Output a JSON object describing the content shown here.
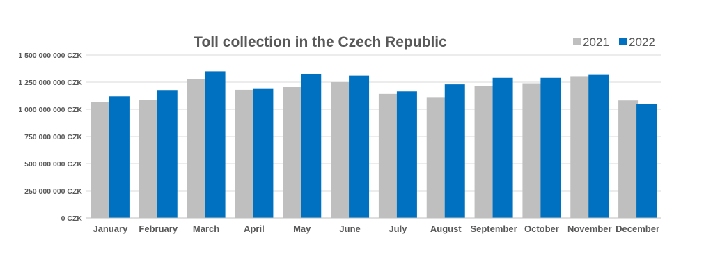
{
  "chart_data": {
    "type": "bar",
    "title": "Toll collection in the Czech Republic",
    "xlabel": "",
    "ylabel": "",
    "ylim": [
      0,
      1500000000
    ],
    "yticks": [
      0,
      250000000,
      500000000,
      750000000,
      1000000000,
      1250000000,
      1500000000
    ],
    "ytick_labels": [
      "0 CZK",
      "250 000 000 CZK",
      "500 000 000 CZK",
      "750 000 000 CZK",
      "1 000 000 000 CZK",
      "1 250 000 000 CZK",
      "1 500 000 000 CZK"
    ],
    "categories": [
      "January",
      "February",
      "March",
      "April",
      "May",
      "June",
      "July",
      "August",
      "September",
      "October",
      "November",
      "December"
    ],
    "series": [
      {
        "name": "2021",
        "color": "#bfbfbf",
        "values": [
          1065000000,
          1085000000,
          1280000000,
          1180000000,
          1205000000,
          1250000000,
          1142000000,
          1113000000,
          1213000000,
          1240000000,
          1305000000,
          1082000000
        ]
      },
      {
        "name": "2022",
        "color": "#0070c0",
        "values": [
          1120000000,
          1178000000,
          1350000000,
          1188000000,
          1327000000,
          1310000000,
          1165000000,
          1230000000,
          1290000000,
          1290000000,
          1323000000,
          1050000000
        ]
      }
    ],
    "grid": true,
    "legend_position": "top-right"
  }
}
